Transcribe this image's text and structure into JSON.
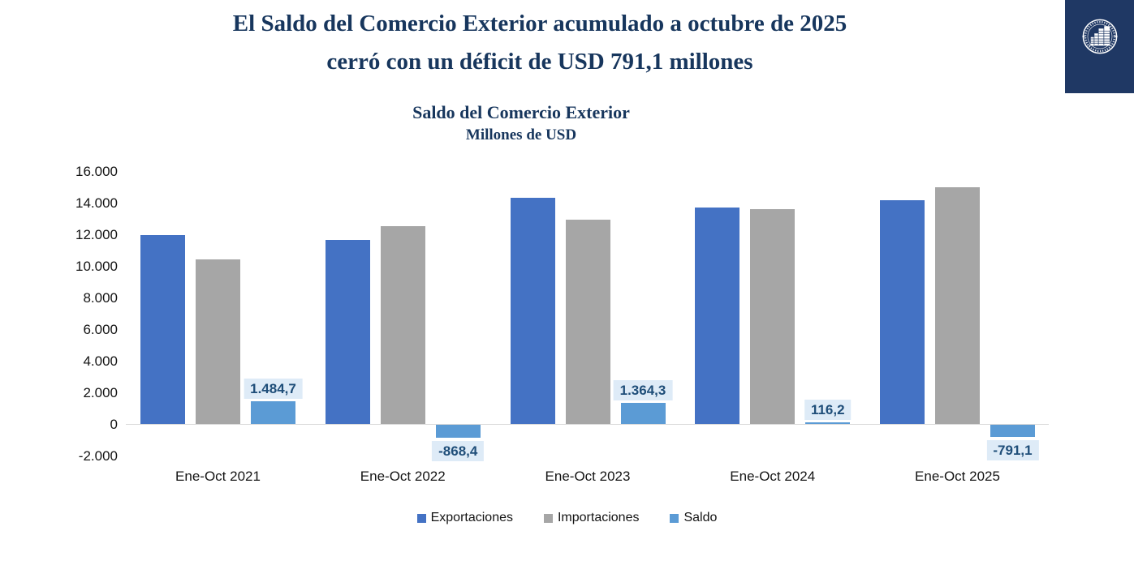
{
  "header": {
    "title_line1": "El Saldo del Comercio Exterior acumulado a octubre de 2025",
    "title_line2": "cerró con un déficit de USD 791,1 millones"
  },
  "logo": {
    "icon": "central-bank-building-seal-icon"
  },
  "colors": {
    "title_navy": "#17365D",
    "logo_navy": "#1F3864",
    "exportaciones": "#4472C4",
    "importaciones": "#A6A6A6",
    "saldo": "#5B9BD5",
    "data_label_bg": "#DEEBF7",
    "data_label_text": "#1F4E79",
    "axis_line": "#D9D9D9"
  },
  "chart_data": {
    "type": "bar",
    "title": "Saldo del Comercio Exterior",
    "subtitle": "Millones de USD",
    "categories": [
      "Ene-Oct 2021",
      "Ene-Oct 2022",
      "Ene-Oct 2023",
      "Ene-Oct 2024",
      "Ene-Oct 2025"
    ],
    "series": [
      {
        "name": "Exportaciones",
        "color": "#4472C4",
        "values": [
          11950,
          11690,
          14330,
          13740,
          14200
        ]
      },
      {
        "name": "Importaciones",
        "color": "#A6A6A6",
        "values": [
          10460,
          12560,
          12970,
          13620,
          14990
        ]
      },
      {
        "name": "Saldo",
        "color": "#5B9BD5",
        "values": [
          1484.7,
          -868.4,
          1364.3,
          116.2,
          -791.1
        ],
        "data_labels": [
          "1.484,7",
          "-868,4",
          "1.364,3",
          "116,2",
          "-791,1"
        ]
      }
    ],
    "y_axis": {
      "min": -2000,
      "max": 16000,
      "step": 2000,
      "ticks": [
        {
          "value": 16000,
          "label": "16.000"
        },
        {
          "value": 14000,
          "label": "14.000"
        },
        {
          "value": 12000,
          "label": "12.000"
        },
        {
          "value": 10000,
          "label": "10.000"
        },
        {
          "value": 8000,
          "label": "8.000"
        },
        {
          "value": 6000,
          "label": "6.000"
        },
        {
          "value": 4000,
          "label": "4.000"
        },
        {
          "value": 2000,
          "label": "2.000"
        },
        {
          "value": 0,
          "label": "0"
        },
        {
          "value": -2000,
          "label": "-2.000"
        }
      ]
    },
    "grid": false,
    "legend_position": "bottom"
  }
}
